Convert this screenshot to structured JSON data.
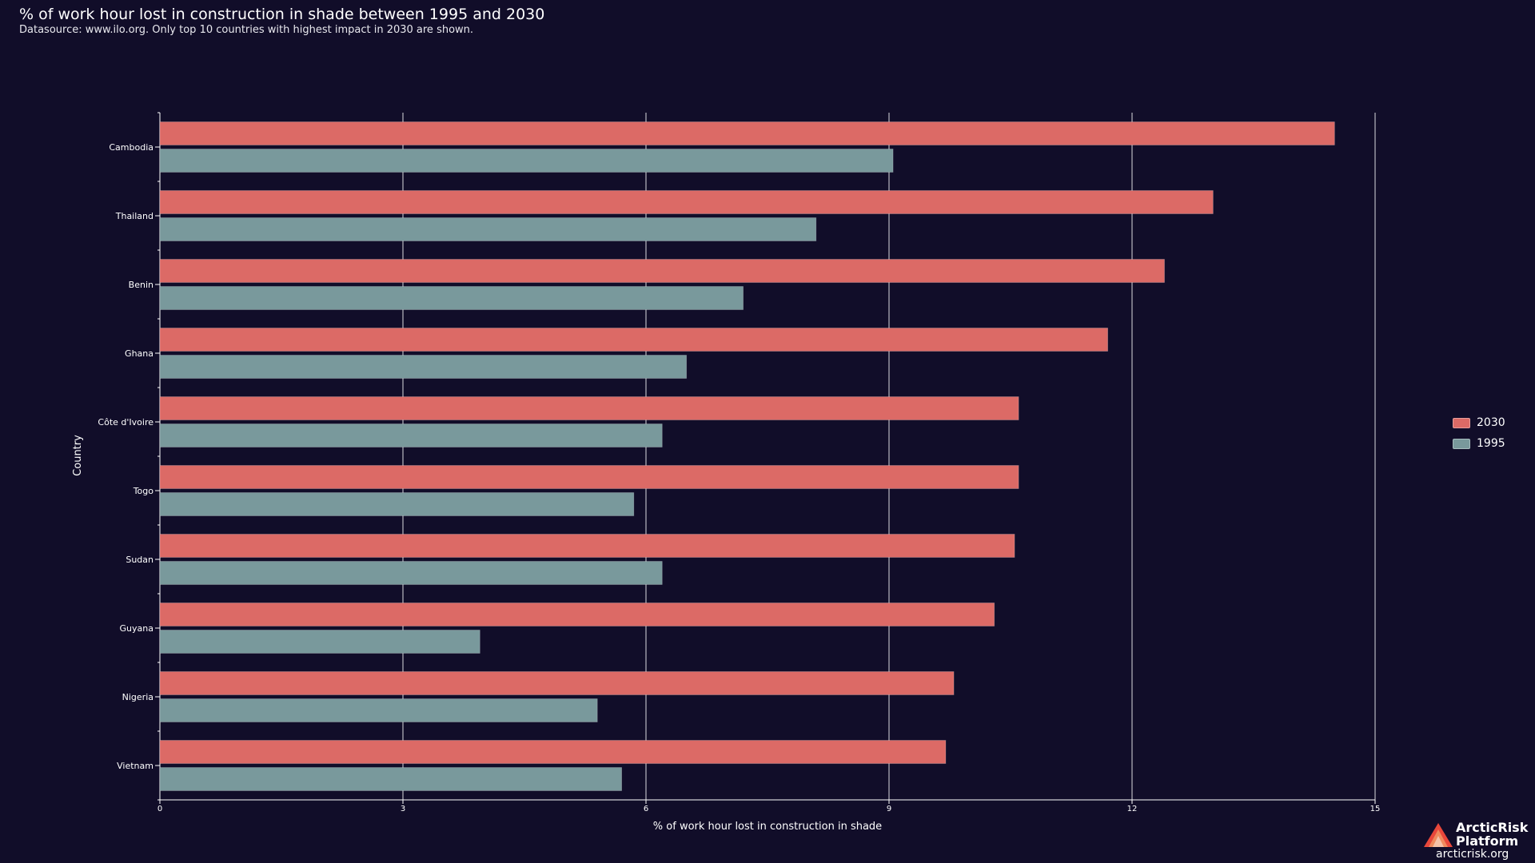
{
  "header": {
    "title": "% of work hour lost in construction in shade between 1995 and 2030",
    "subtitle": "Datasource: www.ilo.org. Only top 10 countries with highest impact in 2030 are shown."
  },
  "colors": {
    "background": "#110d29",
    "series_2030": "#dc6a66",
    "series_1995": "#79999c",
    "grid": "#ffffff",
    "logo_red": "#e8473b",
    "logo_orange": "#f08a5d"
  },
  "chart_data": {
    "type": "bar",
    "orientation": "horizontal",
    "title": "% of work hour lost in construction in shade between 1995 and 2030",
    "xlabel": "% of work hour lost in construction in shade",
    "ylabel": "Country",
    "xlim": [
      0,
      15
    ],
    "xticks": [
      0,
      3,
      6,
      9,
      12,
      15
    ],
    "grid": true,
    "legend_position": "right",
    "categories": [
      "Cambodia",
      "Thailand",
      "Benin",
      "Ghana",
      "Côte d'Ivoire",
      "Togo",
      "Sudan",
      "Guyana",
      "Nigeria",
      "Vietnam"
    ],
    "series": [
      {
        "name": "2030",
        "color": "#dc6a66",
        "values": [
          14.5,
          13.0,
          12.4,
          11.7,
          10.6,
          10.6,
          10.55,
          10.3,
          9.8,
          9.7
        ]
      },
      {
        "name": "1995",
        "color": "#79999c",
        "values": [
          9.05,
          8.1,
          7.2,
          6.5,
          6.2,
          5.85,
          6.2,
          3.95,
          5.4,
          5.7
        ]
      }
    ]
  },
  "legend": {
    "items": [
      {
        "label": "2030"
      },
      {
        "label": "1995"
      }
    ]
  },
  "logo": {
    "name_line1": "ArcticRisk",
    "name_line2": "Platform",
    "url": "arcticrisk.org"
  }
}
